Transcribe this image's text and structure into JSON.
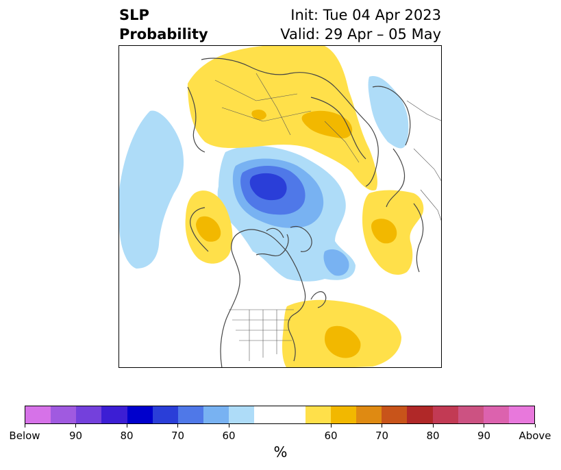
{
  "title": {
    "left_line1": "SLP",
    "left_line2": "Probability",
    "right_line1": "Init: Tue 04 Apr 2023",
    "right_line2": "Valid: 29 Apr – 05 May"
  },
  "colorbar": {
    "label": "%",
    "colors": [
      "#d672e8",
      "#a05ae0",
      "#7440dc",
      "#3c1ed4",
      "#0000cc",
      "#2a3ed8",
      "#4f78e8",
      "#78b2f2",
      "#aedcf8",
      "#ffffff",
      "#ffffff",
      "#ffe04a",
      "#f2b800",
      "#df8a12",
      "#c8541a",
      "#b02828",
      "#c23a54",
      "#cc5282",
      "#dc62ae",
      "#e878dc"
    ],
    "tick_labels": [
      "Below",
      "90",
      "80",
      "70",
      "60",
      "60",
      "70",
      "80",
      "90",
      "Above"
    ]
  },
  "map": {
    "description_colors": {
      "below_light": "#aedcf8",
      "below_mid": "#78b2f2",
      "below_dark": "#4f78e8",
      "below_darker": "#2a3ed8",
      "above_light": "#ffe04a",
      "above_mid": "#f2b800",
      "coast": "#444444"
    }
  }
}
